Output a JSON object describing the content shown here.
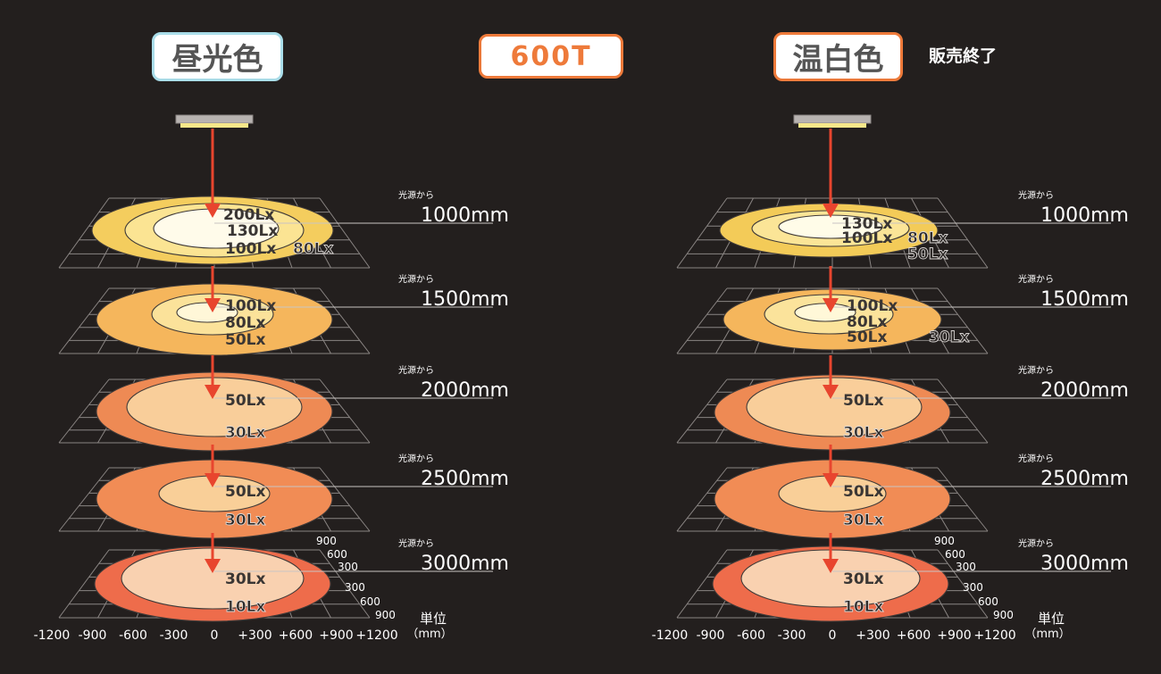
{
  "header": {
    "left_label": "昼光色",
    "center_label": "600T",
    "right_label": "温白色",
    "right_note": "販売終了"
  },
  "colors": {
    "background": "#231f1e",
    "left_badge_border": "#a9dde9",
    "accent": "#ee7a3a",
    "arrow": "#e8452e"
  },
  "distance_caption": "光源から",
  "unit_label": "単位",
  "unit_value": "（mm）",
  "x_ticks": [
    "-1200",
    "-900",
    "-600",
    "-300",
    "0",
    "+300",
    "+600",
    "+900",
    "+1200"
  ],
  "depth_ticks_upper": [
    "900",
    "600",
    "300"
  ],
  "depth_ticks_lower": [
    "300",
    "600",
    "900"
  ],
  "diagrams": [
    {
      "name": "daylight",
      "levels": [
        {
          "distance": "1000mm",
          "labels": [
            "200Lx",
            "130Lx",
            "100Lx",
            "80Lx"
          ]
        },
        {
          "distance": "1500mm",
          "labels": [
            "100Lx",
            "80Lx",
            "50Lx"
          ]
        },
        {
          "distance": "2000mm",
          "labels": [
            "50Lx",
            "30Lx"
          ]
        },
        {
          "distance": "2500mm",
          "labels": [
            "50Lx",
            "30Lx"
          ]
        },
        {
          "distance": "3000mm",
          "labels": [
            "30Lx",
            "10Lx"
          ]
        }
      ]
    },
    {
      "name": "warm-white",
      "levels": [
        {
          "distance": "1000mm",
          "labels": [
            "130Lx",
            "100Lx",
            "80Lx",
            "50Lx"
          ]
        },
        {
          "distance": "1500mm",
          "labels": [
            "100Lx",
            "80Lx",
            "50Lx",
            "30Lx"
          ]
        },
        {
          "distance": "2000mm",
          "labels": [
            "50Lx",
            "30Lx"
          ]
        },
        {
          "distance": "2500mm",
          "labels": [
            "50Lx",
            "30Lx"
          ]
        },
        {
          "distance": "3000mm",
          "labels": [
            "30Lx",
            "10Lx"
          ]
        }
      ]
    }
  ]
}
